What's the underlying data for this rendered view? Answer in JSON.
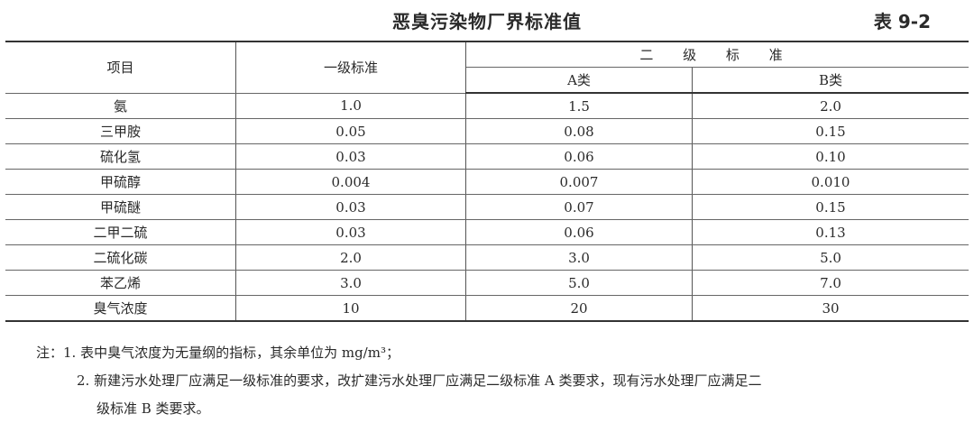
{
  "title": "恶臭污染物厂界标准值",
  "table_no": "表 9-2",
  "headers": {
    "item": "项目",
    "grade1": "一级标准",
    "grade2": "二 级 标 准",
    "a": "A类",
    "b": "B类"
  },
  "rows": [
    [
      "氨",
      "1.0",
      "1.5",
      "2.0"
    ],
    [
      "三甲胺",
      "0.05",
      "0.08",
      "0.15"
    ],
    [
      "硫化氢",
      "0.03",
      "0.06",
      "0.10"
    ],
    [
      "甲硫醇",
      "0.004",
      "0.007",
      "0.010"
    ],
    [
      "甲硫醚",
      "0.03",
      "0.07",
      "0.15"
    ],
    [
      "二甲二硫",
      "0.03",
      "0.06",
      "0.13"
    ],
    [
      "二硫化碳",
      "2.0",
      "3.0",
      "5.0"
    ],
    [
      "苯乙烯",
      "3.0",
      "5.0",
      "7.0"
    ],
    [
      "臭气浓度",
      "10",
      "20",
      "30"
    ]
  ],
  "notes": {
    "n1": "注：1. 表中臭气浓度为无量纲的指标，其余单位为 mg/m³；",
    "n2": "2. 新建污水处理厂应满足一级标准的要求，改扩建污水处理厂应满足二级标准 A 类要求，现有污水处理厂应满足二",
    "n3": "级标准 B 类要求。"
  }
}
